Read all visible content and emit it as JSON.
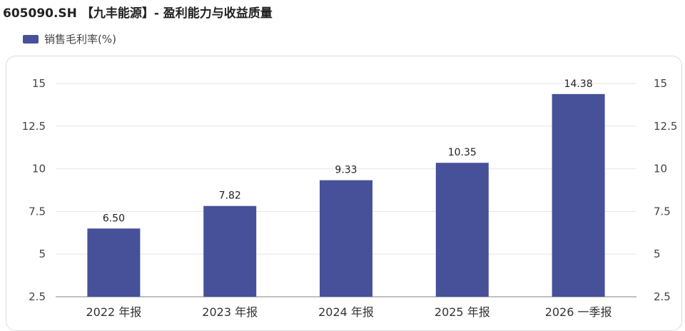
{
  "header": {
    "title": "605090.SH 【九丰能源】- 盈利能力与收益质量"
  },
  "chart_data": {
    "type": "bar",
    "title": "605090.SH 【九丰能源】- 盈利能力与收益质量",
    "categories": [
      "2022 年报",
      "2023 年报",
      "2024 年报",
      "2025 年报",
      "2026 一季报"
    ],
    "series": [
      {
        "name": "销售毛利率(%)",
        "values": [
          6.5,
          7.82,
          9.33,
          10.35,
          14.38
        ],
        "labels": [
          "6.50",
          "7.82",
          "9.33",
          "10.35",
          "14.38"
        ],
        "color": "#46519a"
      }
    ],
    "yticks": [
      "2.5",
      "5",
      "7.5",
      "10",
      "12.5",
      "15"
    ],
    "ylim": [
      2.5,
      15
    ],
    "grid": true,
    "legend": "top-left",
    "dual_y_axis": true
  }
}
